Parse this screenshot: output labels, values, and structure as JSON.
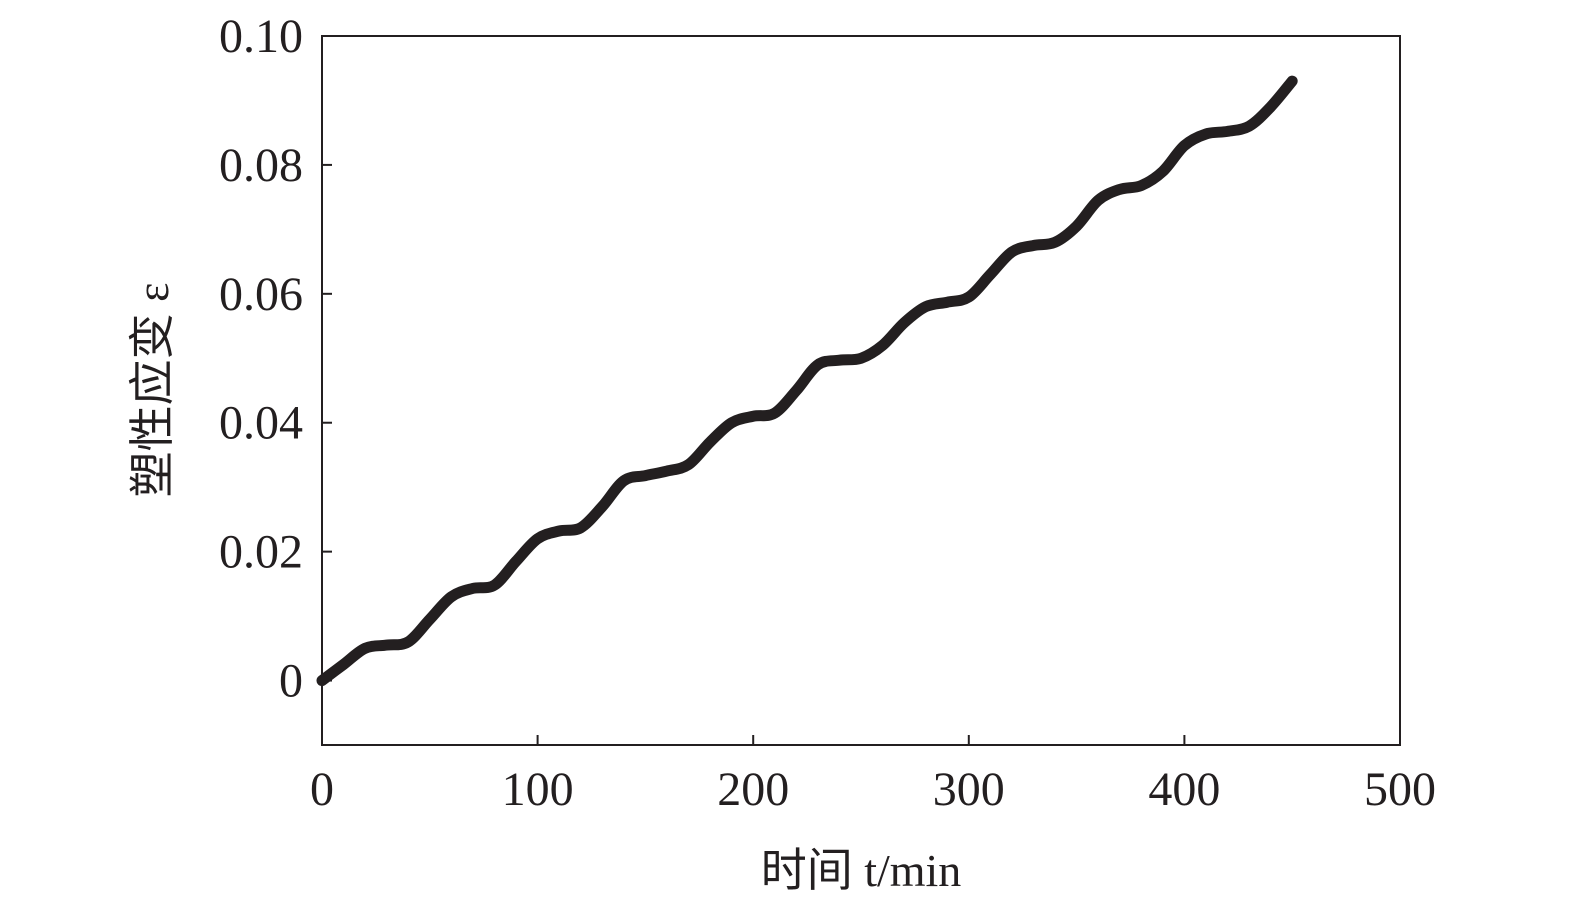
{
  "chart_data": {
    "type": "line",
    "title": "",
    "xlabel": "时间 t/min",
    "ylabel": "塑性应变 ε",
    "xlim": [
      0,
      500
    ],
    "ylim": [
      -0.01,
      0.1
    ],
    "xticks": [
      "0",
      "100",
      "200",
      "300",
      "400",
      "500"
    ],
    "yticks": [
      "0",
      "0.02",
      "0.04",
      "0.06",
      "0.08",
      "0.10"
    ],
    "grid": false,
    "line_color": "#231f20",
    "series": [
      {
        "x": [
          0,
          10,
          20,
          30,
          40,
          50,
          60,
          70,
          80,
          90,
          100,
          110,
          120,
          130,
          140,
          150,
          160,
          170,
          180,
          190,
          200,
          210,
          220,
          230,
          240,
          250,
          260,
          270,
          280,
          290,
          300,
          310,
          320,
          330,
          340,
          350,
          360,
          370,
          380,
          390,
          400,
          410,
          420,
          430,
          440,
          450
        ],
        "y": [
          0,
          0.0025,
          0.005,
          0.0055,
          0.006,
          0.0095,
          0.013,
          0.0143,
          0.0148,
          0.0185,
          0.022,
          0.0232,
          0.0237,
          0.027,
          0.031,
          0.0318,
          0.0325,
          0.0335,
          0.037,
          0.04,
          0.041,
          0.0415,
          0.045,
          0.049,
          0.0497,
          0.05,
          0.052,
          0.0555,
          0.058,
          0.0587,
          0.0595,
          0.063,
          0.0665,
          0.0675,
          0.068,
          0.0705,
          0.0745,
          0.0762,
          0.0768,
          0.079,
          0.083,
          0.0848,
          0.0852,
          0.086,
          0.089,
          0.093
        ]
      }
    ]
  }
}
